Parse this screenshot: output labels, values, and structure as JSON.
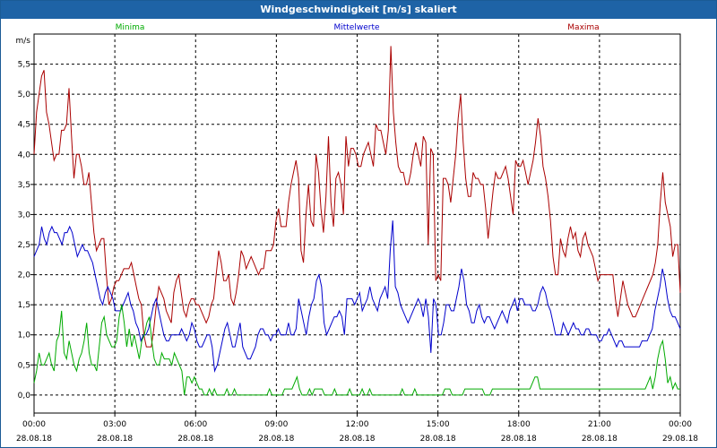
{
  "window": {
    "title": "Windgeschwindigkeit [m/s] skaliert"
  },
  "colors": {
    "title_bar": "#1e63a6",
    "minima": "#00aa00",
    "mittelwerte": "#0000cc",
    "maxima": "#aa0000",
    "grid": "#000000"
  },
  "chart_data": {
    "type": "line",
    "title": "Windgeschwindigkeit [m/s] skaliert",
    "ylabel": "m/s",
    "xlabel": "",
    "ylim": [
      -0.3,
      6.0
    ],
    "yticks": [
      0.0,
      0.5,
      1.0,
      1.5,
      2.0,
      2.5,
      3.0,
      3.5,
      4.0,
      4.5,
      5.0,
      5.5
    ],
    "ytick_labels": [
      "0,0",
      "0,5",
      "1,0",
      "1,5",
      "2,0",
      "2,5",
      "3,0",
      "3,5",
      "4,0",
      "4,5",
      "5,0",
      "5,5"
    ],
    "xlim_hours": [
      0,
      24
    ],
    "xticks": [
      {
        "hour": 0,
        "time": "00:00",
        "date": "28.08.18"
      },
      {
        "hour": 3,
        "time": "03:00",
        "date": "28.08.18"
      },
      {
        "hour": 6,
        "time": "06:00",
        "date": "28.08.18"
      },
      {
        "hour": 9,
        "time": "09:00",
        "date": "28.08.18"
      },
      {
        "hour": 12,
        "time": "12:00",
        "date": "28.08.18"
      },
      {
        "hour": 15,
        "time": "15:00",
        "date": "28.08.18"
      },
      {
        "hour": 18,
        "time": "18:00",
        "date": "28.08.18"
      },
      {
        "hour": 21,
        "time": "21:00",
        "date": "28.08.18"
      },
      {
        "hour": 24,
        "time": "00:00",
        "date": "29.08.18"
      }
    ],
    "grid": true,
    "legend_position": "top",
    "sample_step_hours": 0.1,
    "series": [
      {
        "name": "Maxima",
        "color": "#aa0000",
        "values": [
          4.0,
          4.7,
          5.0,
          5.3,
          5.4,
          4.7,
          4.5,
          4.2,
          3.9,
          4.0,
          4.0,
          4.4,
          4.4,
          4.5,
          5.1,
          4.3,
          3.6,
          4.0,
          4.0,
          3.8,
          3.5,
          3.5,
          3.7,
          3.2,
          2.7,
          2.4,
          2.5,
          2.6,
          2.6,
          2.0,
          1.5,
          1.6,
          1.8,
          1.9,
          1.9,
          2.0,
          2.1,
          2.1,
          2.1,
          2.2,
          2.0,
          1.8,
          1.6,
          1.5,
          1.0,
          0.8,
          0.8,
          0.8,
          1.1,
          1.5,
          1.8,
          1.7,
          1.6,
          1.4,
          1.3,
          1.2,
          1.7,
          1.9,
          2.0,
          1.7,
          1.4,
          1.3,
          1.5,
          1.6,
          1.6,
          1.5,
          1.5,
          1.4,
          1.3,
          1.2,
          1.3,
          1.5,
          1.6,
          2.0,
          2.4,
          2.2,
          1.9,
          1.9,
          2.0,
          1.6,
          1.5,
          1.7,
          2.0,
          2.4,
          2.3,
          2.1,
          2.2,
          2.3,
          2.2,
          2.1,
          2.0,
          2.1,
          2.1,
          2.4,
          2.4,
          2.4,
          2.5,
          2.9,
          3.1,
          2.8,
          2.8,
          2.8,
          3.2,
          3.5,
          3.7,
          3.9,
          3.6,
          2.4,
          2.2,
          3.0,
          3.5,
          2.9,
          2.8,
          4.0,
          3.7,
          3.1,
          2.7,
          3.3,
          4.3,
          3.2,
          2.8,
          3.6,
          3.7,
          3.5,
          3.0,
          4.3,
          3.8,
          4.1,
          4.1,
          4.0,
          3.8,
          3.8,
          4.0,
          4.1,
          4.2,
          4.0,
          3.8,
          4.5,
          4.4,
          4.4,
          4.2,
          4.0,
          4.4,
          5.8,
          4.7,
          4.2,
          3.8,
          3.7,
          3.7,
          3.5,
          3.5,
          3.7,
          4.0,
          4.2,
          4.0,
          3.8,
          4.3,
          4.2,
          2.5,
          4.1,
          4.0,
          1.9,
          2.0,
          1.9,
          3.6,
          3.6,
          3.5,
          3.2,
          3.6,
          4.0,
          4.6,
          5.0,
          4.2,
          3.6,
          3.3,
          3.3,
          3.7,
          3.6,
          3.6,
          3.5,
          3.5,
          3.1,
          2.6,
          3.0,
          3.4,
          3.7,
          3.6,
          3.6,
          3.7,
          3.8,
          3.6,
          3.3,
          3.0,
          3.9,
          3.8,
          3.8,
          3.9,
          3.7,
          3.5,
          3.7,
          3.9,
          4.2,
          4.6,
          4.3,
          3.8,
          3.6,
          3.3,
          2.9,
          2.3,
          2.0,
          2.0,
          2.6,
          2.4,
          2.3,
          2.6,
          2.8,
          2.6,
          2.7,
          2.4,
          2.3,
          2.6,
          2.7,
          2.5,
          2.4,
          2.3,
          2.1,
          1.9,
          2.0,
          2.0,
          2.0,
          2.0,
          2.0,
          2.0,
          1.6,
          1.3,
          1.6,
          1.9,
          1.7,
          1.5,
          1.4,
          1.3,
          1.3,
          1.4,
          1.5,
          1.6,
          1.7,
          1.8,
          1.9,
          2.0,
          2.2,
          2.5,
          3.2,
          3.7,
          3.2,
          3.0,
          2.8,
          2.3,
          2.5,
          2.5,
          1.7
        ]
      },
      {
        "name": "Mittelwerte",
        "color": "#0000cc",
        "values": [
          2.3,
          2.4,
          2.5,
          2.8,
          2.6,
          2.5,
          2.7,
          2.8,
          2.7,
          2.7,
          2.6,
          2.5,
          2.7,
          2.7,
          2.8,
          2.7,
          2.5,
          2.3,
          2.4,
          2.5,
          2.4,
          2.4,
          2.3,
          2.2,
          2.0,
          1.8,
          1.6,
          1.5,
          1.7,
          1.8,
          1.7,
          1.6,
          1.4,
          1.4,
          1.4,
          1.5,
          1.6,
          1.7,
          1.5,
          1.4,
          1.2,
          1.1,
          0.9,
          1.0,
          1.0,
          1.1,
          1.3,
          1.5,
          1.6,
          1.4,
          1.2,
          1.0,
          0.9,
          0.9,
          1.0,
          1.0,
          1.0,
          1.0,
          1.1,
          1.0,
          0.9,
          1.0,
          1.2,
          1.1,
          0.9,
          0.8,
          0.8,
          0.9,
          1.0,
          1.0,
          0.8,
          0.4,
          0.5,
          0.7,
          0.9,
          1.1,
          1.2,
          1.0,
          0.8,
          0.8,
          1.0,
          1.2,
          0.8,
          0.7,
          0.6,
          0.6,
          0.7,
          0.8,
          1.0,
          1.1,
          1.1,
          1.0,
          1.0,
          0.9,
          1.0,
          1.0,
          1.1,
          1.0,
          1.0,
          1.0,
          1.2,
          1.0,
          1.0,
          1.1,
          1.6,
          1.4,
          1.2,
          1.0,
          1.3,
          1.5,
          1.6,
          1.9,
          2.0,
          1.8,
          1.2,
          1.0,
          1.1,
          1.2,
          1.3,
          1.3,
          1.4,
          1.3,
          1.0,
          1.6,
          1.6,
          1.6,
          1.5,
          1.6,
          1.7,
          1.4,
          1.5,
          1.6,
          1.8,
          1.6,
          1.5,
          1.4,
          1.6,
          1.7,
          1.8,
          1.6,
          2.4,
          2.9,
          1.8,
          1.7,
          1.5,
          1.4,
          1.3,
          1.2,
          1.3,
          1.4,
          1.5,
          1.6,
          1.5,
          1.3,
          1.6,
          1.3,
          0.7,
          1.6,
          1.5,
          1.0,
          1.0,
          1.2,
          1.5,
          1.5,
          1.4,
          1.4,
          1.6,
          1.8,
          2.1,
          1.9,
          1.5,
          1.4,
          1.2,
          1.2,
          1.4,
          1.5,
          1.3,
          1.2,
          1.3,
          1.3,
          1.2,
          1.1,
          1.2,
          1.3,
          1.4,
          1.3,
          1.2,
          1.4,
          1.5,
          1.6,
          1.4,
          1.6,
          1.6,
          1.5,
          1.5,
          1.5,
          1.4,
          1.4,
          1.5,
          1.7,
          1.8,
          1.7,
          1.5,
          1.4,
          1.2,
          1.0,
          1.0,
          1.0,
          1.2,
          1.1,
          1.0,
          1.1,
          1.2,
          1.1,
          1.1,
          1.0,
          1.0,
          1.1,
          1.1,
          1.0,
          1.0,
          1.0,
          0.9,
          0.9,
          1.0,
          1.0,
          1.1,
          1.0,
          0.9,
          0.8,
          0.9,
          0.9,
          0.8,
          0.8,
          0.8,
          0.8,
          0.8,
          0.8,
          0.8,
          0.9,
          0.9,
          0.9,
          1.0,
          1.1,
          1.4,
          1.6,
          1.8,
          2.1,
          1.9,
          1.6,
          1.4,
          1.3,
          1.3,
          1.2,
          1.1
        ]
      },
      {
        "name": "Minima",
        "color": "#00aa00",
        "values": [
          0.2,
          0.4,
          0.7,
          0.5,
          0.5,
          0.6,
          0.7,
          0.5,
          0.4,
          0.9,
          1.0,
          1.4,
          0.7,
          0.6,
          0.9,
          0.7,
          0.5,
          0.4,
          0.6,
          0.7,
          0.9,
          1.2,
          0.7,
          0.5,
          0.5,
          0.4,
          0.8,
          1.2,
          1.3,
          1.0,
          0.9,
          0.8,
          0.8,
          0.9,
          1.3,
          1.5,
          1.2,
          0.8,
          1.1,
          0.8,
          1.0,
          0.8,
          0.6,
          0.9,
          1.0,
          1.2,
          1.3,
          0.9,
          0.6,
          0.5,
          0.5,
          0.7,
          0.6,
          0.6,
          0.6,
          0.5,
          0.7,
          0.6,
          0.5,
          0.4,
          0.0,
          0.3,
          0.3,
          0.2,
          0.3,
          0.2,
          0.1,
          0.1,
          0.0,
          0.0,
          0.1,
          0.0,
          0.1,
          0.0,
          0.0,
          0.0,
          0.0,
          0.1,
          0.0,
          0.0,
          0.1,
          0.0,
          0.0,
          0.0,
          0.0,
          0.0,
          0.0,
          0.0,
          0.0,
          0.0,
          0.0,
          0.0,
          0.0,
          0.0,
          0.1,
          0.0,
          0.0,
          0.0,
          0.0,
          0.0,
          0.1,
          0.1,
          0.1,
          0.1,
          0.2,
          0.3,
          0.1,
          0.0,
          0.0,
          0.0,
          0.1,
          0.0,
          0.1,
          0.1,
          0.1,
          0.1,
          0.0,
          0.0,
          0.0,
          0.0,
          0.1,
          0.0,
          0.0,
          0.0,
          0.0,
          0.0,
          0.1,
          0.0,
          0.0,
          0.0,
          0.0,
          0.1,
          0.0,
          0.0,
          0.1,
          0.0,
          0.0,
          0.0,
          0.0,
          0.0,
          0.0,
          0.0,
          0.0,
          0.0,
          0.0,
          0.0,
          0.0,
          0.1,
          0.0,
          0.0,
          0.0,
          0.0,
          0.1,
          0.0,
          0.0,
          0.0,
          0.0,
          0.0,
          0.0,
          0.0,
          0.0,
          0.0,
          0.0,
          0.0,
          0.1,
          0.1,
          0.1,
          0.0,
          0.0,
          0.0,
          0.0,
          0.0,
          0.1,
          0.1,
          0.1,
          0.1,
          0.1,
          0.1,
          0.1,
          0.1,
          0.0,
          0.0,
          0.0,
          0.1,
          0.1,
          0.1,
          0.1,
          0.1,
          0.1,
          0.1,
          0.1,
          0.1,
          0.1,
          0.1,
          0.1,
          0.1,
          0.1,
          0.1,
          0.1,
          0.2,
          0.3,
          0.3,
          0.1,
          0.1,
          0.1,
          0.1,
          0.1,
          0.1,
          0.1,
          0.1,
          0.1,
          0.1,
          0.1,
          0.1,
          0.1,
          0.1,
          0.1,
          0.1,
          0.1,
          0.1,
          0.1,
          0.1,
          0.1,
          0.1,
          0.1,
          0.1,
          0.1,
          0.1,
          0.1,
          0.1,
          0.1,
          0.1,
          0.1,
          0.1,
          0.1,
          0.1,
          0.1,
          0.1,
          0.1,
          0.1,
          0.1,
          0.1,
          0.1,
          0.1,
          0.1,
          0.2,
          0.3,
          0.1,
          0.3,
          0.6,
          0.8,
          0.9,
          0.6,
          0.2,
          0.3,
          0.1,
          0.2,
          0.1,
          0.1
        ]
      }
    ]
  }
}
